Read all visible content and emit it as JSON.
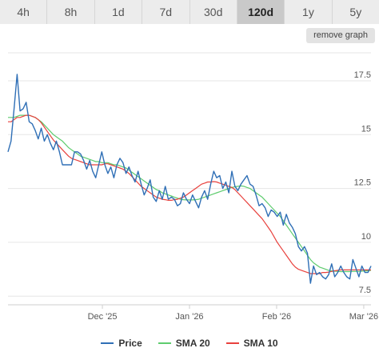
{
  "tabs": [
    {
      "label": "4h",
      "active": false
    },
    {
      "label": "8h",
      "active": false
    },
    {
      "label": "1d",
      "active": false
    },
    {
      "label": "7d",
      "active": false
    },
    {
      "label": "30d",
      "active": false
    },
    {
      "label": "120d",
      "active": true
    },
    {
      "label": "1y",
      "active": false
    },
    {
      "label": "5y",
      "active": false
    }
  ],
  "remove_graph_label": "remove graph",
  "chart_data": {
    "type": "line",
    "ylim": [
      7.1,
      18.8
    ],
    "y_ticks": [
      7.5,
      10,
      12.5,
      15,
      17.5
    ],
    "y_tick_labels": [
      "7.5",
      "10",
      "12.5",
      "15",
      "17.5"
    ],
    "x_tick_labels": [
      "Dec '25",
      "Jan '26",
      "Feb '26",
      "Mar '26"
    ],
    "x_tick_positions": [
      0.26,
      0.5,
      0.74,
      0.98
    ],
    "grid": true,
    "legend": "bottom",
    "series": [
      {
        "name": "Price",
        "color": "#2f6fb6",
        "values": [
          14.2,
          14.7,
          16.2,
          17.8,
          16.1,
          16.2,
          16.5,
          15.6,
          15.5,
          15.2,
          14.8,
          15.3,
          14.7,
          15.0,
          14.6,
          14.3,
          14.7,
          14.2,
          13.6,
          13.6,
          13.6,
          13.6,
          14.2,
          14.2,
          14.1,
          13.8,
          13.4,
          13.8,
          13.3,
          13.0,
          13.6,
          14.2,
          13.6,
          13.2,
          13.5,
          13.0,
          13.6,
          13.9,
          13.7,
          13.2,
          13.5,
          13.1,
          12.8,
          13.3,
          12.7,
          12.2,
          12.5,
          12.9,
          12.1,
          11.9,
          12.4,
          12.0,
          12.6,
          12.0,
          12.1,
          12.0,
          11.7,
          11.8,
          12.3,
          12.0,
          11.8,
          12.2,
          11.9,
          11.6,
          12.1,
          12.4,
          12.0,
          12.7,
          13.3,
          13.0,
          13.1,
          12.5,
          12.8,
          12.3,
          13.3,
          12.6,
          12.4,
          12.7,
          12.9,
          13.1,
          12.7,
          12.6,
          12.2,
          11.7,
          11.8,
          11.6,
          11.2,
          11.5,
          11.4,
          11.2,
          11.4,
          10.8,
          11.3,
          10.9,
          10.7,
          10.4,
          9.8,
          9.6,
          9.8,
          9.5,
          8.1,
          8.9,
          8.5,
          8.6,
          8.4,
          8.3,
          8.5,
          9.0,
          8.4,
          8.6,
          8.9,
          8.6,
          8.4,
          8.3,
          9.2,
          8.8,
          8.4,
          8.9,
          8.6,
          8.6,
          8.9
        ]
      },
      {
        "name": "SMA 20",
        "color": "#5ecc6e",
        "values": [
          15.8,
          15.8,
          15.8,
          15.85,
          15.9,
          15.9,
          15.9,
          15.9,
          15.85,
          15.8,
          15.7,
          15.6,
          15.45,
          15.3,
          15.15,
          15.0,
          14.9,
          14.8,
          14.7,
          14.55,
          14.4,
          14.3,
          14.2,
          14.1,
          14.0,
          13.95,
          13.9,
          13.85,
          13.8,
          13.75,
          13.75,
          13.7,
          13.7,
          13.7,
          13.65,
          13.6,
          13.6,
          13.55,
          13.5,
          13.45,
          13.35,
          13.25,
          13.15,
          13.05,
          12.95,
          12.85,
          12.75,
          12.65,
          12.55,
          12.45,
          12.4,
          12.3,
          12.25,
          12.2,
          12.15,
          12.1,
          12.05,
          12.0,
          11.98,
          11.97,
          11.97,
          11.97,
          11.98,
          12.0,
          12.05,
          12.1,
          12.15,
          12.2,
          12.25,
          12.3,
          12.35,
          12.4,
          12.45,
          12.5,
          12.55,
          12.58,
          12.6,
          12.62,
          12.6,
          12.55,
          12.5,
          12.4,
          12.3,
          12.2,
          12.1,
          11.95,
          11.8,
          11.65,
          11.5,
          11.35,
          11.2,
          11.0,
          10.8,
          10.6,
          10.4,
          10.2,
          10.0,
          9.8,
          9.6,
          9.4,
          9.2,
          9.05,
          8.95,
          8.85,
          8.8,
          8.75,
          8.7,
          8.68,
          8.66,
          8.65,
          8.64,
          8.64,
          8.64,
          8.64,
          8.65,
          8.65,
          8.65,
          8.66,
          8.67,
          8.68,
          8.7
        ]
      },
      {
        "name": "SMA 10",
        "color": "#e8413d",
        "values": [
          15.6,
          15.6,
          15.7,
          15.8,
          15.8,
          15.85,
          15.9,
          15.9,
          15.85,
          15.8,
          15.7,
          15.55,
          15.35,
          15.15,
          14.95,
          14.75,
          14.6,
          14.45,
          14.3,
          14.15,
          14.0,
          13.9,
          13.85,
          13.8,
          13.75,
          13.7,
          13.65,
          13.6,
          13.6,
          13.6,
          13.6,
          13.6,
          13.65,
          13.65,
          13.6,
          13.55,
          13.5,
          13.45,
          13.4,
          13.3,
          13.2,
          13.05,
          12.9,
          12.75,
          12.6,
          12.5,
          12.4,
          12.3,
          12.2,
          12.1,
          12.05,
          12.0,
          11.98,
          11.95,
          11.95,
          11.98,
          12.0,
          12.05,
          12.1,
          12.2,
          12.3,
          12.4,
          12.5,
          12.6,
          12.7,
          12.75,
          12.8,
          12.8,
          12.82,
          12.8,
          12.75,
          12.7,
          12.65,
          12.6,
          12.55,
          12.45,
          12.3,
          12.15,
          12.0,
          11.85,
          11.7,
          11.55,
          11.4,
          11.25,
          11.1,
          10.9,
          10.7,
          10.5,
          10.25,
          10.0,
          9.8,
          9.6,
          9.4,
          9.2,
          9.0,
          8.85,
          8.75,
          8.7,
          8.65,
          8.6,
          8.55,
          8.55,
          8.55,
          8.55,
          8.6,
          8.6,
          8.62,
          8.65,
          8.68,
          8.7,
          8.72,
          8.72,
          8.72,
          8.72,
          8.72,
          8.72,
          8.72,
          8.72,
          8.72,
          8.72,
          8.72
        ]
      }
    ]
  }
}
